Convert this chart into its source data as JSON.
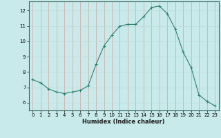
{
  "x_values": [
    0,
    1,
    2,
    3,
    4,
    5,
    6,
    7,
    8,
    9,
    10,
    11,
    12,
    13,
    14,
    15,
    16,
    17,
    18,
    19,
    20,
    21,
    22,
    23
  ],
  "y_values": [
    7.5,
    7.3,
    6.9,
    6.7,
    6.6,
    6.7,
    6.8,
    7.1,
    8.5,
    9.7,
    10.4,
    11.0,
    11.1,
    11.1,
    11.6,
    12.2,
    12.3,
    11.8,
    10.8,
    9.3,
    8.3,
    6.5,
    6.1,
    5.8
  ],
  "line_color": "#2e7d6e",
  "marker": "+",
  "marker_size": 3,
  "bg_color": "#c8eaea",
  "grid_color_v": "#d9a0a0",
  "grid_color_h": "#c0d8d8",
  "xlabel": "Humidex (Indice chaleur)",
  "xlim": [
    -0.5,
    23.5
  ],
  "ylim": [
    5.5,
    12.6
  ],
  "yticks": [
    6,
    7,
    8,
    9,
    10,
    11,
    12
  ],
  "xticks": [
    0,
    1,
    2,
    3,
    4,
    5,
    6,
    7,
    8,
    9,
    10,
    11,
    12,
    13,
    14,
    15,
    16,
    17,
    18,
    19,
    20,
    21,
    22,
    23
  ]
}
